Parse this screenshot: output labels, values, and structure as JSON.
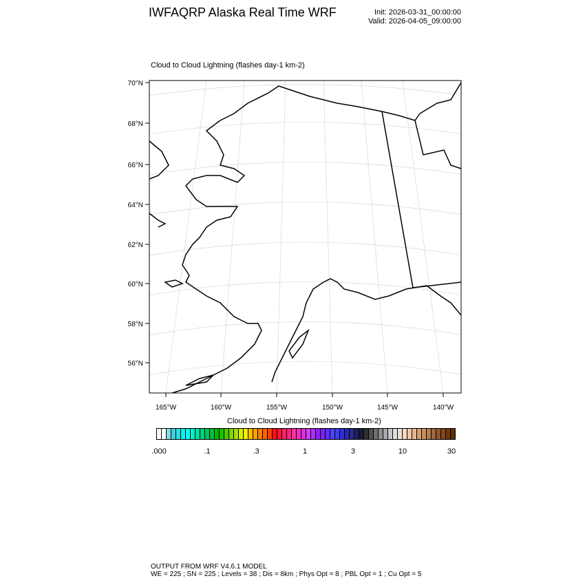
{
  "header": {
    "title": "IWFAQRP Alaska Real Time WRF",
    "init": "Init: 2026-03-31_00:00:00",
    "valid": "Valid: 2026-04-05_09:00:00"
  },
  "map": {
    "field_title": "Cloud to Cloud Lightning   (flashes day-1 km-2)",
    "lat_labels": [
      "70°N",
      "68°N",
      "66°N",
      "64°N",
      "62°N",
      "60°N",
      "58°N",
      "56°N"
    ],
    "lon_labels": [
      "165°W",
      "160°W",
      "155°W",
      "150°W",
      "145°W",
      "140°W"
    ]
  },
  "colorbar": {
    "title": "Cloud to Cloud Lightning  (flashes day-1 km-2)",
    "labels": [
      ".000",
      ".1",
      ".3",
      "1",
      "3",
      "10",
      "30"
    ],
    "colors": [
      "#ffffff",
      "#ffffff",
      "#80dcdc",
      "#40d0d8",
      "#30e0e0",
      "#10f0f0",
      "#00ffff",
      "#00f0c0",
      "#00e0a0",
      "#00d080",
      "#00c860",
      "#00c040",
      "#00b800",
      "#20c000",
      "#50c800",
      "#80d800",
      "#a8e000",
      "#d8f000",
      "#f0f000",
      "#ffc000",
      "#ffa000",
      "#ff8000",
      "#ff6000",
      "#ff4000",
      "#ff1010",
      "#ff1040",
      "#ff2060",
      "#ff2080",
      "#ff30a0",
      "#f030c0",
      "#e030e0",
      "#d040ff",
      "#b030ff",
      "#9020ff",
      "#8020f0",
      "#6030ff",
      "#5040ff",
      "#4040f0",
      "#3030e0",
      "#2828b0",
      "#282890",
      "#202060",
      "#181840",
      "#303030",
      "#505050",
      "#707070",
      "#909090",
      "#a8a8a8",
      "#c8c8c8",
      "#e0e0e0",
      "#ece0d4",
      "#f0d8c0",
      "#f0c8a8",
      "#e8b890",
      "#d8a070",
      "#c89060",
      "#b87c50",
      "#a06840",
      "#905830",
      "#804820",
      "#703810",
      "#603000"
    ]
  },
  "footer": {
    "line1": "OUTPUT FROM WRF V4.6.1 MODEL",
    "line2": "WE = 225 ; SN = 225 ; Levels = 38 ; Dis = 8km ; Phys Opt = 8 ; PBL Opt = 1 ; Cu Opt = 5"
  }
}
